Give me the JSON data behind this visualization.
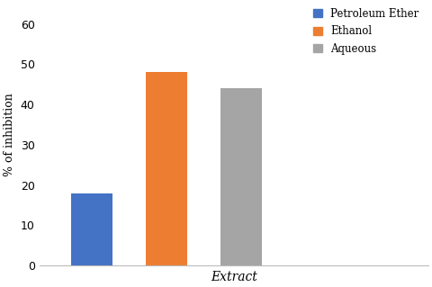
{
  "categories": [
    "Petroleum Ether",
    "Ethanol",
    "Aqueous"
  ],
  "values": [
    18.0,
    48.0,
    44.0
  ],
  "bar_colors": [
    "#4472C4",
    "#ED7D31",
    "#A5A5A5"
  ],
  "xlabel": "Extract",
  "ylabel": "% of inhibition",
  "ylim": [
    0,
    65
  ],
  "yticks": [
    0,
    10,
    20,
    30,
    40,
    50,
    60
  ],
  "legend_labels": [
    "Petroleum Ether",
    "Ethanol",
    "Aqueous"
  ],
  "background_color": "#ffffff",
  "bar_width": 0.55
}
